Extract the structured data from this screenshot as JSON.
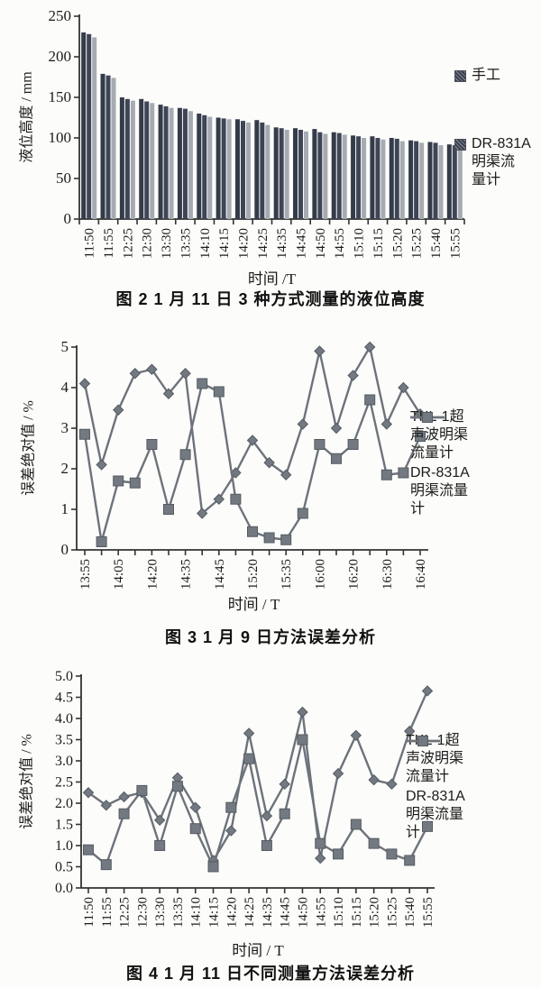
{
  "page_background": "#fcfcfa",
  "colors": {
    "axis": "#333333",
    "line_series": "#6d737b",
    "marker_fill": "#737981",
    "marker_stroke": "#555b63",
    "bar_dark_1": "#343b49",
    "bar_dark_2": "#3e4556",
    "bar_light": "#a6abb3",
    "text": "#1b1b1b"
  },
  "chart_data": [
    {
      "id": "fig2",
      "type": "bar",
      "caption": "图 2   1 月 11 日 3 种方式测量的液位高度",
      "ylabel": "液位高度 / mm",
      "xlabel": "时间 /T",
      "ylim": [
        0,
        250
      ],
      "yticks": [
        "0",
        "50",
        "100",
        "150",
        "200",
        "250"
      ],
      "grid": false,
      "legend_position": "right",
      "categories": [
        "11:50",
        "11:55",
        "12:25",
        "12:30",
        "13:30",
        "13:35",
        "14:10",
        "14:15",
        "14:20",
        "14:25",
        "14:35",
        "14:45",
        "14:50",
        "14:55",
        "15:10",
        "15:15",
        "15:20",
        "15:25",
        "15:40",
        "15:55"
      ],
      "series": [
        {
          "name": "手工",
          "values": [
            230,
            179,
            150,
            148,
            141,
            137,
            130,
            125,
            123,
            122,
            113,
            112,
            111,
            107,
            103,
            102,
            100,
            97,
            95,
            92
          ]
        },
        {
          "name": "",
          "values": [
            228,
            177,
            148,
            145,
            139,
            136,
            128,
            124,
            121,
            119,
            112,
            110,
            107,
            106,
            102,
            100,
            99,
            96,
            94,
            91
          ]
        },
        {
          "name": "DR-831A明渠流量计",
          "values": [
            224,
            174,
            146,
            143,
            137,
            133,
            126,
            123,
            119,
            116,
            110,
            108,
            105,
            104,
            100,
            98,
            96,
            94,
            91,
            87
          ]
        }
      ],
      "legend": [
        {
          "label": "手工",
          "marker": "patterned-square"
        },
        {
          "label": "DR-831A\n明渠流\n量计",
          "marker": "patterned-square"
        }
      ]
    },
    {
      "id": "fig3",
      "type": "line",
      "caption": "图 3   1 月 9 日方法误差分析",
      "ylabel": "误差绝对值 / %",
      "xlabel": "时间 / T",
      "ylim": [
        0,
        5
      ],
      "yticks": [
        "0",
        "1",
        "2",
        "3",
        "4",
        "5"
      ],
      "grid": false,
      "legend_position": "right",
      "categories": [
        "13:55",
        "",
        "14:05",
        "",
        "14:20",
        "",
        "14:35",
        "",
        "14:45",
        "",
        "15:20",
        "",
        "15:35",
        "",
        "16:00",
        "",
        "16:20",
        "",
        "16:30",
        "",
        "16:40"
      ],
      "series": [
        {
          "name": "TKL-1超声波明渠流量计",
          "marker": "diamond",
          "values": [
            4.1,
            2.1,
            3.45,
            4.35,
            4.45,
            3.85,
            4.35,
            0.9,
            1.25,
            1.9,
            2.7,
            2.15,
            1.85,
            3.1,
            4.9,
            3.0,
            4.3,
            5.0,
            3.1,
            4.0,
            3.35
          ]
        },
        {
          "name": "DR-831A明渠流量计",
          "marker": "square",
          "values": [
            2.85,
            0.2,
            1.7,
            1.65,
            2.6,
            1.0,
            2.35,
            4.1,
            3.9,
            1.25,
            0.45,
            0.3,
            0.25,
            0.9,
            2.6,
            2.25,
            2.6,
            3.7,
            1.85,
            1.9,
            2.8
          ]
        }
      ],
      "legend": [
        {
          "label": "TKL-1超\n声波明渠\n流量计",
          "marker": "line-with-diamond"
        },
        {
          "label": "DR-831A\n明渠流量\n计",
          "marker": "line-with-square"
        }
      ]
    },
    {
      "id": "fig4",
      "type": "line",
      "caption": "图 4   1 月 11 日不同测量方法误差分析",
      "ylabel": "误差绝对值 / %",
      "xlabel": "时间 / T",
      "ylim": [
        0,
        5
      ],
      "yticks": [
        "0.0",
        "0.5",
        "1.0",
        "1.5",
        "2.0",
        "2.5",
        "3.0",
        "3.5",
        "4.0",
        "4.5",
        "5.0"
      ],
      "grid": false,
      "legend_position": "right",
      "categories": [
        "11:50",
        "11:55",
        "12:25",
        "12:30",
        "13:30",
        "13:35",
        "14:10",
        "14:15",
        "14:20",
        "14:25",
        "14:35",
        "14:45",
        "14:50",
        "14:55",
        "15:10",
        "15:15",
        "15:20",
        "15:25",
        "15:40",
        "15:55"
      ],
      "series": [
        {
          "name": "TKL-1超声波明渠流量计",
          "marker": "diamond",
          "values": [
            2.25,
            1.95,
            2.15,
            2.25,
            1.6,
            2.6,
            1.9,
            0.65,
            1.35,
            3.65,
            1.7,
            2.45,
            4.15,
            0.7,
            2.7,
            3.6,
            2.55,
            2.45,
            3.7,
            4.65
          ]
        },
        {
          "name": "DR-831A明渠流量计",
          "marker": "square",
          "values": [
            0.9,
            0.55,
            1.75,
            2.3,
            1.0,
            2.4,
            1.4,
            0.5,
            1.9,
            3.05,
            1.0,
            1.75,
            3.5,
            1.05,
            0.8,
            1.5,
            1.05,
            0.8,
            0.65,
            1.45
          ]
        }
      ],
      "legend": [
        {
          "label": "TKL-1超\n声波明渠\n流量计",
          "marker": "line-with-diamond"
        },
        {
          "label": "DR-831A\n明渠流量\n计",
          "marker": "line-with-square"
        }
      ]
    }
  ]
}
